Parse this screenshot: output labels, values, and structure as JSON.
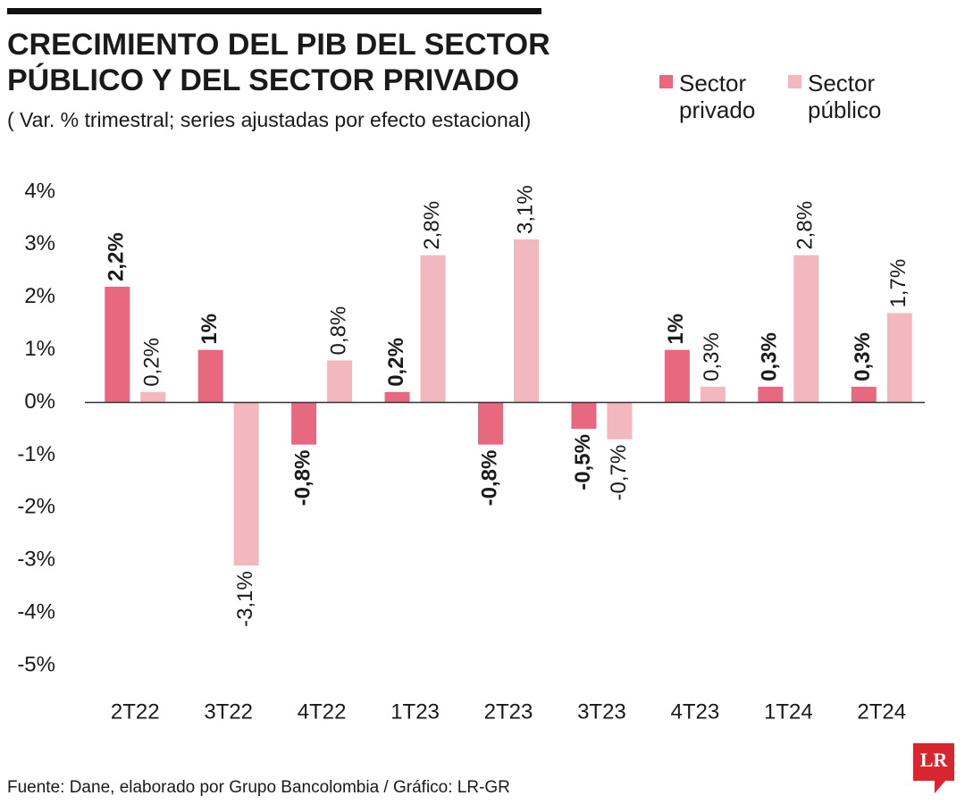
{
  "chart_data": {
    "type": "bar",
    "title": [
      "CRECIMIENTO DEL PIB DEL SECTOR",
      "PÚBLICO Y DEL SECTOR PRIVADO"
    ],
    "subtitle": "( Var. % trimestral; series ajustadas por efecto estacional)",
    "source": "Fuente: Dane, elaborado por Grupo Bancolombia / Gráfico: LR-GR",
    "logo": "LR",
    "categories": [
      "2T22",
      "3T22",
      "4T22",
      "1T23",
      "2T23",
      "3T23",
      "4T23",
      "1T24",
      "2T24"
    ],
    "series": [
      {
        "name": "Sector privado",
        "color": "#e8697f",
        "bold_labels": true,
        "values": [
          2.2,
          1,
          -0.8,
          0.2,
          -0.8,
          -0.5,
          1,
          0.3,
          0.3
        ],
        "value_labels": [
          "2,2%",
          "1%",
          "-0,8%",
          "0,2%",
          "-0,8%",
          "-0,5%",
          "1%",
          "0,3%",
          "0,3%"
        ]
      },
      {
        "name": "Sector público",
        "color": "#f2b8be",
        "bold_labels": false,
        "values": [
          0.2,
          -3.1,
          0.8,
          2.8,
          3.1,
          -0.7,
          0.3,
          2.8,
          1.7
        ],
        "value_labels": [
          "0,2%",
          "-3,1%",
          "0,8%",
          "2,8%",
          "3,1%",
          "-0,7%",
          "0,3%",
          "2,8%",
          "1,7%"
        ]
      }
    ],
    "ylim": [
      -5,
      4
    ],
    "yticks": [
      {
        "value": 4,
        "label": "4%"
      },
      {
        "value": 3,
        "label": "3%"
      },
      {
        "value": 2,
        "label": "2%"
      },
      {
        "value": 1,
        "label": "1%"
      },
      {
        "value": 0,
        "label": "0%"
      },
      {
        "value": -1,
        "label": "-1%"
      },
      {
        "value": -2,
        "label": "-2%"
      },
      {
        "value": -3,
        "label": "-3%"
      },
      {
        "value": -4,
        "label": "-4%"
      },
      {
        "value": -5,
        "label": "-5%"
      }
    ],
    "grid": false
  }
}
